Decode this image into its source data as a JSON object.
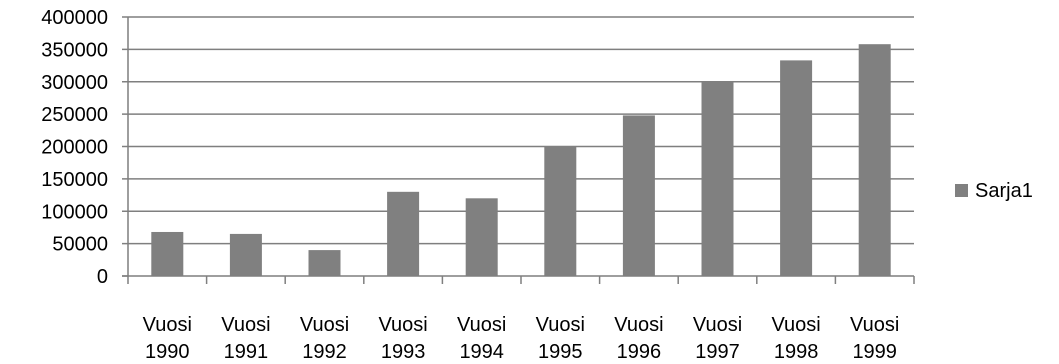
{
  "chart_data": {
    "type": "bar",
    "categories": [
      [
        "Vuosi",
        "1990"
      ],
      [
        "Vuosi",
        "1991"
      ],
      [
        "Vuosi",
        "1992"
      ],
      [
        "Vuosi",
        "1993"
      ],
      [
        "Vuosi",
        "1994"
      ],
      [
        "Vuosi",
        "1995"
      ],
      [
        "Vuosi",
        "1996"
      ],
      [
        "Vuosi",
        "1997"
      ],
      [
        "Vuosi",
        "1998"
      ],
      [
        "Vuosi",
        "1999"
      ]
    ],
    "series": [
      {
        "name": "Sarja1",
        "values": [
          68000,
          65000,
          40000,
          130000,
          120000,
          200000,
          248000,
          300000,
          333000,
          358000
        ]
      }
    ],
    "yticks": [
      "0",
      "50000",
      "100000",
      "150000",
      "200000",
      "250000",
      "300000",
      "350000",
      "400000"
    ],
    "ylim": [
      0,
      400000
    ],
    "grid": true,
    "legend_position": "right",
    "colors": {
      "bar": "#808080",
      "grid": "#7f7f7f",
      "axis": "#7f7f7f"
    }
  }
}
